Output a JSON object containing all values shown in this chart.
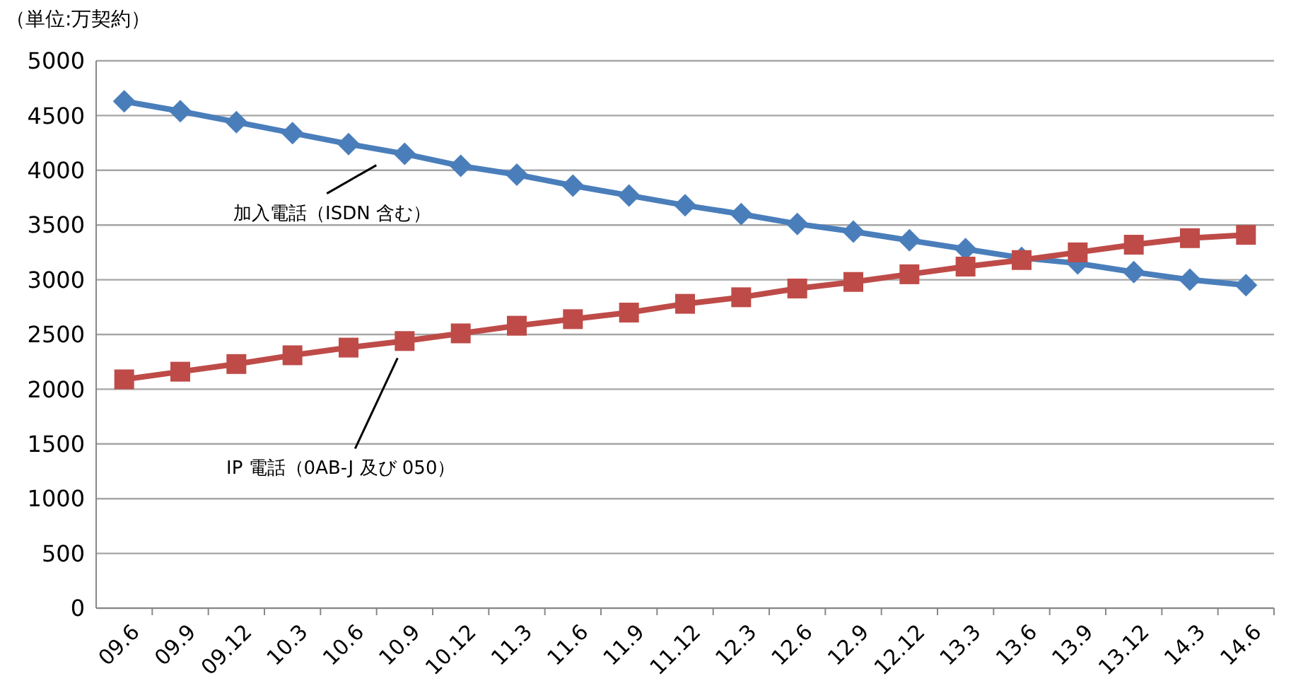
{
  "chart_data": {
    "type": "line",
    "ylabel": "（単位:万契約）",
    "categories": [
      "09.6",
      "09.9",
      "09.12",
      "10.3",
      "10.6",
      "10.9",
      "10.12",
      "11.3",
      "11.6",
      "11.9",
      "11.12",
      "12.3",
      "12.6",
      "12.9",
      "12.12",
      "13.3",
      "13.6",
      "13.9",
      "13.12",
      "14.3",
      "14.6"
    ],
    "series": [
      {
        "name": "加入電話（ISDN 含む）",
        "color": "#4a7ebb",
        "marker": "diamond",
        "values": [
          4630,
          4540,
          4440,
          4340,
          4240,
          4150,
          4040,
          3960,
          3860,
          3770,
          3680,
          3600,
          3510,
          3440,
          3360,
          3280,
          3200,
          3150,
          3070,
          3000,
          2950
        ]
      },
      {
        "name": "IP 電話（0AB-J 及び 050）",
        "color": "#be4b48",
        "marker": "square",
        "values": [
          2090,
          2160,
          2230,
          2310,
          2380,
          2440,
          2510,
          2580,
          2640,
          2700,
          2780,
          2840,
          2920,
          2980,
          3050,
          3120,
          3180,
          3250,
          3320,
          3380,
          3410
        ]
      }
    ],
    "ylim": [
      0,
      5000
    ],
    "yticks": [
      0,
      500,
      1000,
      1500,
      2000,
      2500,
      3000,
      3500,
      4000,
      4500,
      5000
    ],
    "grid": "y",
    "line_style": "solid"
  }
}
